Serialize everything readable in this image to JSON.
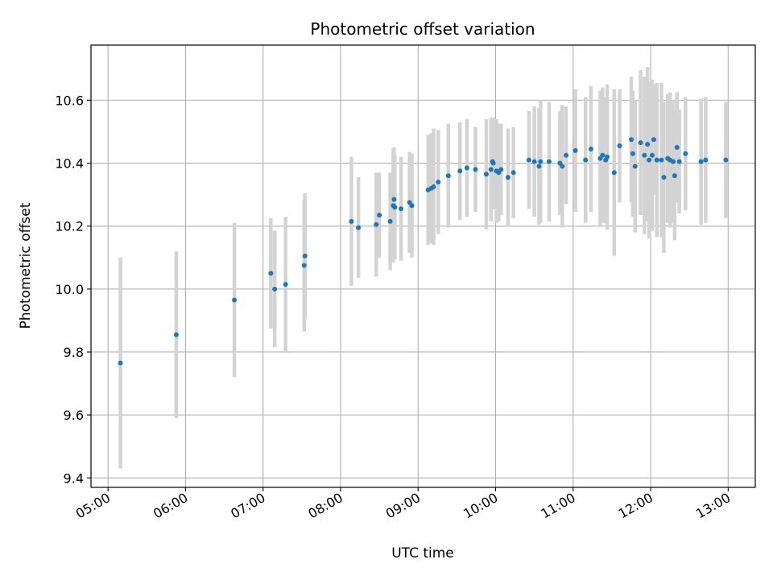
{
  "chart_data": {
    "type": "scatter",
    "title": "Photometric offset variation",
    "xlabel": "UTC time",
    "ylabel": "Photometric offset",
    "x_unit": "hours UTC",
    "xlim": [
      4.78,
      13.35
    ],
    "ylim": [
      9.37,
      10.775
    ],
    "x_ticks": [
      5,
      6,
      7,
      8,
      9,
      10,
      11,
      12,
      13
    ],
    "x_tick_labels": [
      "05:00",
      "06:00",
      "07:00",
      "08:00",
      "09:00",
      "10:00",
      "11:00",
      "12:00",
      "13:00"
    ],
    "y_ticks": [
      9.4,
      9.6,
      9.8,
      10.0,
      10.2,
      10.4,
      10.6
    ],
    "y_tick_labels": [
      "9.4",
      "9.6",
      "9.8",
      "10.0",
      "10.2",
      "10.4",
      "10.6"
    ],
    "grid": true,
    "point_color": "#1f77b4",
    "errorbar_color": "#d3d3d3",
    "x": [
      5.16,
      5.88,
      6.63,
      7.1,
      7.15,
      7.29,
      7.53,
      7.54,
      8.14,
      8.23,
      8.46,
      8.5,
      8.64,
      8.68,
      8.69,
      8.7,
      8.78,
      8.89,
      8.92,
      9.13,
      9.17,
      9.2,
      9.26,
      9.39,
      9.54,
      9.63,
      9.74,
      9.88,
      9.94,
      9.96,
      9.97,
      10.01,
      10.04,
      10.07,
      10.16,
      10.23,
      10.43,
      10.5,
      10.56,
      10.58,
      10.69,
      10.83,
      10.86,
      10.91,
      11.03,
      11.16,
      11.23,
      11.35,
      11.38,
      11.42,
      11.44,
      11.53,
      11.6,
      11.75,
      11.77,
      11.8,
      11.87,
      11.92,
      11.96,
      11.98,
      12.02,
      12.04,
      12.08,
      12.14,
      12.17,
      12.22,
      12.25,
      12.29,
      12.31,
      12.34,
      12.37,
      12.45,
      12.65,
      12.71,
      12.97
    ],
    "y": [
      9.765,
      9.855,
      9.965,
      10.05,
      10.0,
      10.015,
      10.075,
      10.105,
      10.215,
      10.195,
      10.205,
      10.235,
      10.215,
      10.265,
      10.285,
      10.26,
      10.255,
      10.275,
      10.265,
      10.315,
      10.32,
      10.325,
      10.34,
      10.36,
      10.375,
      10.385,
      10.38,
      10.365,
      10.38,
      10.405,
      10.4,
      10.375,
      10.37,
      10.38,
      10.355,
      10.37,
      10.41,
      10.405,
      10.39,
      10.405,
      10.405,
      10.4,
      10.39,
      10.425,
      10.44,
      10.41,
      10.445,
      10.415,
      10.425,
      10.41,
      10.42,
      10.37,
      10.455,
      10.475,
      10.43,
      10.39,
      10.465,
      10.425,
      10.46,
      10.41,
      10.425,
      10.475,
      10.41,
      10.41,
      10.355,
      10.415,
      10.41,
      10.405,
      10.36,
      10.45,
      10.405,
      10.43,
      10.405,
      10.41,
      10.41
    ],
    "err": [
      0.335,
      0.265,
      0.245,
      0.175,
      0.185,
      0.215,
      0.21,
      0.2,
      0.205,
      0.16,
      0.165,
      0.135,
      0.155,
      0.18,
      0.165,
      0.165,
      0.165,
      0.16,
      0.165,
      0.175,
      0.175,
      0.185,
      0.165,
      0.165,
      0.155,
      0.155,
      0.135,
      0.175,
      0.165,
      0.14,
      0.145,
      0.165,
      0.155,
      0.145,
      0.155,
      0.145,
      0.155,
      0.175,
      0.185,
      0.195,
      0.19,
      0.165,
      0.195,
      0.155,
      0.195,
      0.2,
      0.2,
      0.215,
      0.215,
      0.2,
      0.23,
      0.265,
      0.18,
      0.2,
      0.2,
      0.21,
      0.23,
      0.25,
      0.245,
      0.25,
      0.24,
      0.175,
      0.245,
      0.245,
      0.24,
      0.205,
      0.215,
      0.195,
      0.205,
      0.175,
      0.165,
      0.18,
      0.2,
      0.2,
      0.185
    ]
  }
}
